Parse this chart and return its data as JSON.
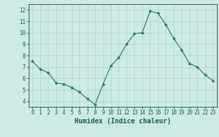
{
  "x": [
    0,
    1,
    2,
    3,
    4,
    5,
    6,
    7,
    8,
    9,
    10,
    11,
    12,
    13,
    14,
    15,
    16,
    17,
    18,
    19,
    20,
    21,
    22,
    23
  ],
  "y": [
    7.5,
    6.8,
    6.5,
    5.6,
    5.5,
    5.2,
    4.8,
    4.2,
    3.7,
    5.5,
    7.1,
    7.8,
    9.0,
    9.9,
    10.0,
    11.9,
    11.7,
    10.7,
    9.5,
    8.5,
    7.3,
    7.0,
    6.3,
    5.8
  ],
  "line_color": "#2d7a68",
  "marker": "D",
  "marker_size": 2.0,
  "bg_color": "#ceeae6",
  "grid_color": "#afd4cf",
  "xlabel": "Humidex (Indice chaleur)",
  "xlabel_fontsize": 7,
  "tick_fontsize": 5.5,
  "tick_color": "#1a5c4e",
  "ylim": [
    3.5,
    12.5
  ],
  "xlim": [
    -0.5,
    23.5
  ],
  "yticks": [
    4,
    5,
    6,
    7,
    8,
    9,
    10,
    11,
    12
  ],
  "xticks": [
    0,
    1,
    2,
    3,
    4,
    5,
    6,
    7,
    8,
    9,
    10,
    11,
    12,
    13,
    14,
    15,
    16,
    17,
    18,
    19,
    20,
    21,
    22,
    23
  ]
}
